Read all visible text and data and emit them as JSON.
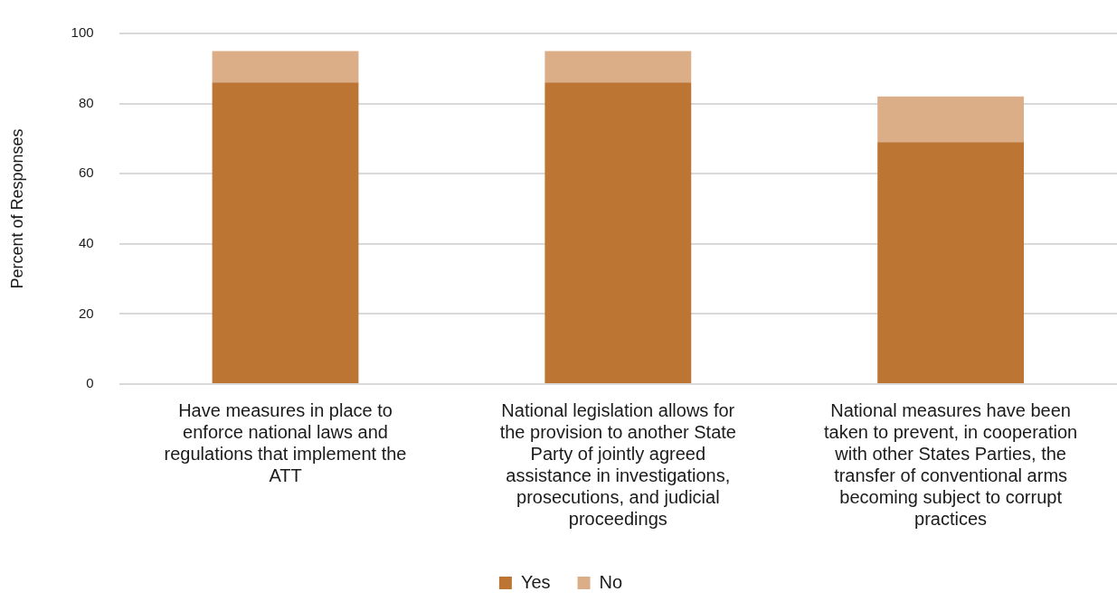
{
  "chart_data": {
    "type": "bar",
    "stacked": true,
    "ylabel": "Percent of Responses",
    "categories": [
      "Have measures in place to enforce national laws and regulations that implement the ATT",
      "National legislation allows for the provision to another State Party of jointly agreed assistance in investigations, prosecutions, and judicial proceedings",
      "National measures have been taken to prevent, in cooperation with other States Parties, the transfer of conventional arms becoming subject to corrupt practices"
    ],
    "series": [
      {
        "name": "Yes",
        "color": "#bd7534",
        "values": [
          86,
          86,
          69
        ]
      },
      {
        "name": "No",
        "color": "#dcae88",
        "values": [
          9,
          9,
          13
        ]
      }
    ],
    "ylim": [
      0,
      100
    ],
    "yticks": [
      0,
      20,
      40,
      60,
      80,
      100
    ],
    "grid": "y",
    "legend": "bottom"
  }
}
